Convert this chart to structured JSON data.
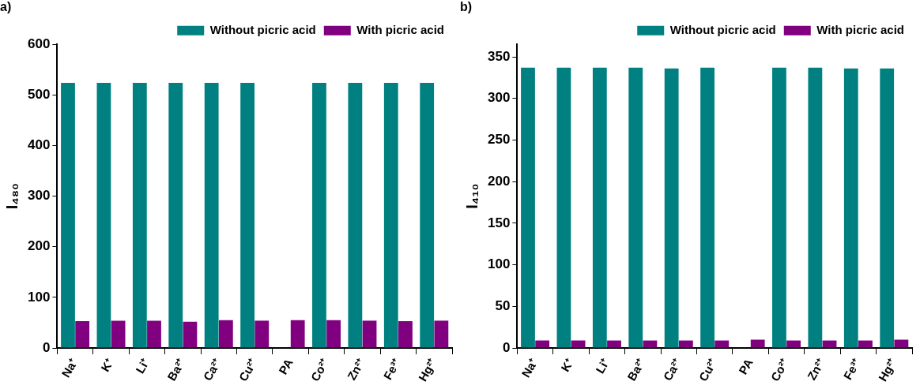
{
  "chart_data": [
    {
      "type": "bar",
      "title": "a)",
      "ylabel": "I₄₈₀",
      "categories": [
        "Na⁺",
        "K⁺",
        "Li⁺",
        "Ba²⁺",
        "Ca²⁺",
        "Cu²⁺",
        "PA",
        "Co²⁺",
        "Zn²⁺",
        "Fe³⁺",
        "Hg²⁺"
      ],
      "series": [
        {
          "name": "Without picric acid",
          "color": "#008080",
          "values": [
            524,
            524,
            524,
            524,
            524,
            524,
            null,
            524,
            524,
            524,
            524
          ]
        },
        {
          "name": "With picric acid",
          "color": "#800080",
          "values": [
            53,
            54,
            54,
            52,
            55,
            54,
            55,
            55,
            54,
            53,
            54
          ]
        }
      ],
      "ylim": [
        0,
        600
      ],
      "yticks": [
        0,
        100,
        200,
        300,
        400,
        500,
        600
      ],
      "grid": false,
      "legend": "top right"
    },
    {
      "type": "bar",
      "title": "b)",
      "ylabel": "I₄₁₀",
      "categories": [
        "Na⁺",
        "K⁺",
        "Li⁺",
        "Ba²⁺",
        "Ca²⁺",
        "Cu²⁺",
        "PA",
        "Co²⁺",
        "Zn²⁺",
        "Fe³⁺",
        "Hg²⁺"
      ],
      "series": [
        {
          "name": "Without picric acid",
          "color": "#008080",
          "values": [
            337,
            337,
            337,
            337,
            336,
            337,
            null,
            337,
            337,
            336,
            336
          ]
        },
        {
          "name": "With picric acid",
          "color": "#800080",
          "values": [
            9,
            9,
            9,
            9,
            9,
            9,
            10,
            9,
            9,
            9,
            10
          ]
        }
      ],
      "ylim": [
        0,
        365
      ],
      "yticks": [
        0,
        50,
        100,
        150,
        200,
        250,
        300,
        350
      ],
      "grid": false,
      "legend": "top right"
    }
  ]
}
